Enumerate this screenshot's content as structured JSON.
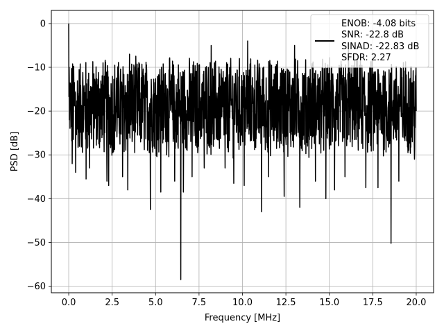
{
  "chart_data": {
    "type": "line",
    "title": "",
    "xlabel": "Frequency [MHz]",
    "ylabel": "PSD [dB]",
    "xlim": [
      -1.0,
      21.0
    ],
    "ylim": [
      -61.5,
      3.0
    ],
    "xticks": [
      0.0,
      2.5,
      5.0,
      7.5,
      10.0,
      12.5,
      15.0,
      17.5,
      20.0
    ],
    "xtick_labels": [
      "0.0",
      "2.5",
      "5.0",
      "7.5",
      "10.0",
      "12.5",
      "15.0",
      "17.5",
      "20.0"
    ],
    "yticks": [
      0,
      -10,
      -20,
      -30,
      -40,
      -50,
      -60
    ],
    "ytick_labels": [
      "0",
      "−10",
      "−20",
      "−30",
      "−40",
      "−50",
      "−60"
    ],
    "grid": true,
    "legend_position": "top-right",
    "legend_lines": [
      "ENOB: -4.08 bits",
      "SNR: -22.8 dB",
      "SINAD: -22.83 dB",
      "SFDR: 2.27"
    ],
    "series": [
      {
        "color": "#000000",
        "noise_band": {
          "mean": -19,
          "upper": -8,
          "lower": -30
        },
        "points": [
          [
            0.0,
            0.0
          ],
          [
            0.02,
            -10.0
          ],
          [
            0.05,
            -22.0
          ],
          [
            0.1,
            -14.0
          ],
          [
            0.2,
            -32.0
          ],
          [
            0.4,
            -34.0
          ],
          [
            1.0,
            -35.5
          ],
          [
            1.2,
            -33.0
          ],
          [
            2.2,
            -36.0
          ],
          [
            2.3,
            -37.0
          ],
          [
            3.1,
            -35.0
          ],
          [
            3.4,
            -38.0
          ],
          [
            3.5,
            -7.0
          ],
          [
            4.7,
            -42.5
          ],
          [
            5.3,
            -38.5
          ],
          [
            6.1,
            -36.0
          ],
          [
            6.45,
            -58.5
          ],
          [
            6.6,
            -38.5
          ],
          [
            7.1,
            -35.0
          ],
          [
            7.8,
            -33.0
          ],
          [
            8.2,
            -5.0
          ],
          [
            9.0,
            -33.0
          ],
          [
            9.5,
            -36.5
          ],
          [
            10.1,
            -37.0
          ],
          [
            10.3,
            -4.0
          ],
          [
            11.1,
            -43.0
          ],
          [
            11.5,
            -35.0
          ],
          [
            12.4,
            -39.5
          ],
          [
            13.0,
            -5.0
          ],
          [
            13.3,
            -42.0
          ],
          [
            14.2,
            -36.0
          ],
          [
            14.8,
            -40.0
          ],
          [
            15.3,
            -38.0
          ],
          [
            15.9,
            -35.0
          ],
          [
            16.1,
            -6.0
          ],
          [
            17.1,
            -37.5
          ],
          [
            17.8,
            -37.5
          ],
          [
            18.55,
            -50.2
          ],
          [
            19.0,
            -36.0
          ],
          [
            19.9,
            -31.0
          ],
          [
            20.0,
            -20.0
          ]
        ]
      }
    ]
  }
}
